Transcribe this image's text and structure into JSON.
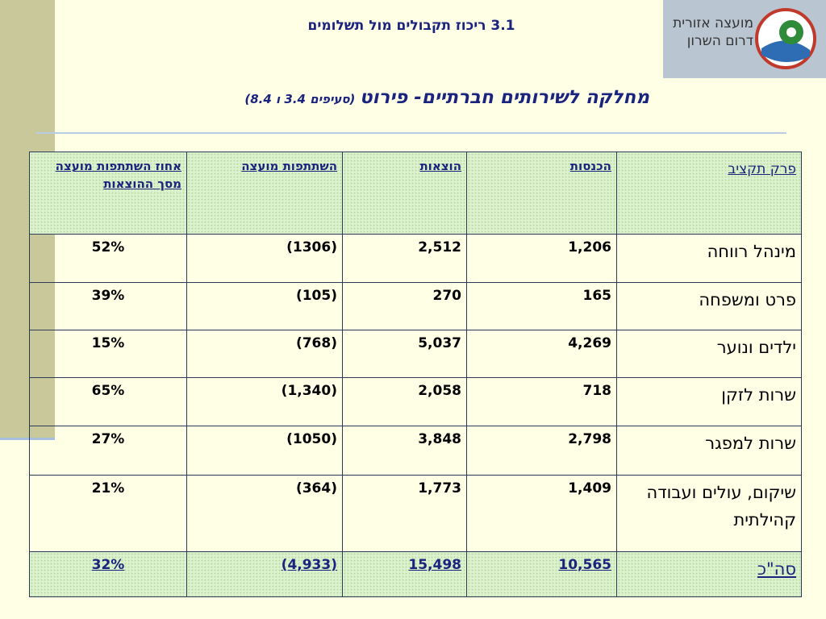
{
  "header": {
    "section": "3.1 ריכוז תקבולים מול תשלומים",
    "logo_lines": [
      "מועצה אזורית",
      "דרום השרון"
    ]
  },
  "title": {
    "main": "מחלקה לשירותים חברתיים- פירוט",
    "note": "(סעיפים 3.4 ו 8.4)"
  },
  "table": {
    "columns": [
      "פרק תקציב",
      "הכנסות",
      "הוצאות",
      "השתתפות מועצה",
      "אחוז השתתפות מועצה מסך ההוצאות"
    ],
    "rows": [
      [
        "מינהל רווחה",
        "1,206",
        "2,512",
        "(1306)",
        "52%"
      ],
      [
        "פרט ומשפחה",
        "165",
        "270",
        "(105)",
        "39%"
      ],
      [
        "ילדים ונוער",
        "4,269",
        "5,037",
        "(768)",
        "15%"
      ],
      [
        "שרות לזקן",
        "718",
        "2,058",
        "(1,340)",
        "65%"
      ],
      [
        "שרות למפגר",
        "2,798",
        "3,848",
        "(1050)",
        "27%"
      ],
      [
        "שיקום, עולים ועבודה קהילתית",
        "1,409",
        "1,773",
        "(364)",
        "21%"
      ]
    ],
    "total": [
      "סה\"כ",
      "10,565",
      "15,498",
      "(4,933)",
      "32%"
    ]
  }
}
